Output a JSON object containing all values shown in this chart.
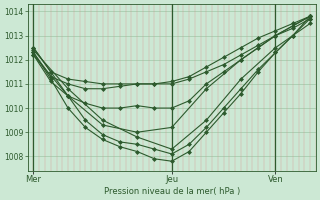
{
  "title": "Pression niveau de la mer( hPa )",
  "background_color": "#cce8d4",
  "plot_bg_color": "#cce8d4",
  "grid_color_h": "#a0c8a8",
  "grid_color_v_red": "#e08080",
  "vline_color": "#2d5a2d",
  "line_color": "#2d5a2d",
  "ylim": [
    1007.4,
    1014.3
  ],
  "xlim": [
    0,
    50
  ],
  "yticks": [
    1008,
    1009,
    1010,
    1011,
    1012,
    1013,
    1014
  ],
  "day_ticks": [
    {
      "x": 1,
      "label": "Mer"
    },
    {
      "x": 25,
      "label": "Jeu"
    },
    {
      "x": 43,
      "label": "Ven"
    }
  ],
  "vlines_dark": [
    1,
    25,
    43
  ],
  "series": [
    {
      "x": [
        1,
        4,
        7,
        10,
        13,
        16,
        19,
        22,
        25,
        28,
        31,
        34,
        37,
        40,
        43,
        46,
        49
      ],
      "y": [
        1012.5,
        1011.5,
        1011.2,
        1011.1,
        1011.0,
        1011.0,
        1011.0,
        1011.0,
        1011.0,
        1011.2,
        1011.5,
        1011.8,
        1012.2,
        1012.6,
        1013.0,
        1013.3,
        1013.7
      ]
    },
    {
      "x": [
        1,
        4,
        7,
        10,
        13,
        16,
        19,
        22,
        25,
        28,
        31,
        34,
        37,
        40,
        43,
        46,
        49
      ],
      "y": [
        1012.3,
        1011.3,
        1011.0,
        1010.8,
        1010.8,
        1010.9,
        1011.0,
        1011.0,
        1011.1,
        1011.3,
        1011.7,
        1012.1,
        1012.5,
        1012.9,
        1013.2,
        1013.5,
        1013.8
      ]
    },
    {
      "x": [
        1,
        4,
        7,
        10,
        13,
        16,
        19,
        22,
        25,
        28,
        31,
        34,
        37,
        40,
        43,
        46,
        49
      ],
      "y": [
        1012.2,
        1011.1,
        1010.5,
        1010.2,
        1010.0,
        1010.0,
        1010.1,
        1010.0,
        1010.0,
        1010.3,
        1011.0,
        1011.5,
        1012.0,
        1012.5,
        1013.0,
        1013.4,
        1013.8
      ]
    },
    {
      "x": [
        1,
        4,
        7,
        10,
        13,
        16,
        19,
        22,
        25,
        28,
        31,
        34,
        37,
        40,
        43,
        46,
        49
      ],
      "y": [
        1012.5,
        1011.5,
        1010.5,
        1009.5,
        1008.9,
        1008.6,
        1008.5,
        1008.3,
        1008.1,
        1008.5,
        1009.2,
        1010.0,
        1010.8,
        1011.6,
        1012.3,
        1013.0,
        1013.7
      ]
    },
    {
      "x": [
        1,
        4,
        7,
        10,
        13,
        16,
        19,
        22,
        25,
        28,
        31,
        34,
        37,
        40,
        43,
        46,
        49
      ],
      "y": [
        1012.3,
        1011.2,
        1010.0,
        1009.2,
        1008.7,
        1008.4,
        1008.2,
        1007.9,
        1007.8,
        1008.2,
        1009.0,
        1009.8,
        1010.6,
        1011.5,
        1012.3,
        1013.0,
        1013.8
      ]
    },
    {
      "x": [
        1,
        7,
        13,
        19,
        25,
        31,
        37,
        43,
        49
      ],
      "y": [
        1012.4,
        1010.8,
        1009.5,
        1008.8,
        1008.3,
        1009.5,
        1011.2,
        1012.5,
        1013.5
      ]
    },
    {
      "x": [
        1,
        7,
        13,
        19,
        25,
        31,
        37,
        43,
        49
      ],
      "y": [
        1012.2,
        1010.5,
        1009.3,
        1009.0,
        1009.2,
        1010.8,
        1012.0,
        1013.0,
        1013.8
      ]
    }
  ]
}
